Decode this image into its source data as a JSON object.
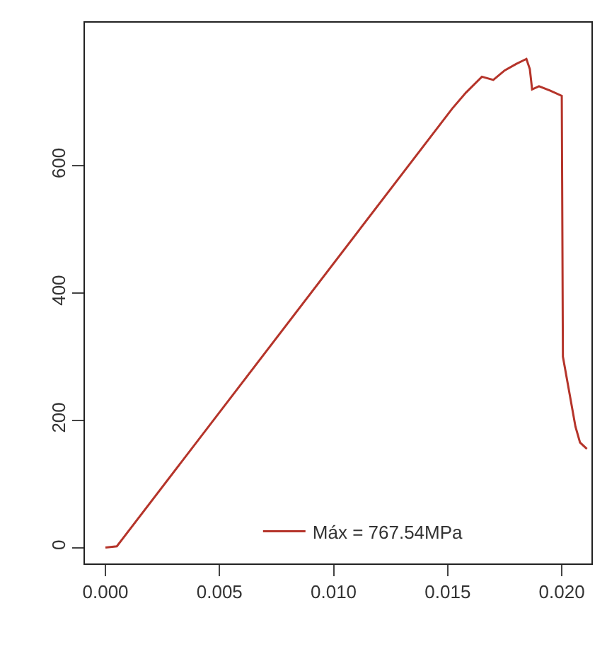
{
  "chart_data": {
    "type": "line",
    "x": [
      0,
      0.0005,
      0.0152,
      0.0158,
      0.0165,
      0.017,
      0.0175,
      0.018,
      0.01845,
      0.0186,
      0.0187,
      0.019,
      0.0195,
      0.02,
      0.02005,
      0.0203,
      0.0206,
      0.0208,
      0.0211
    ],
    "series": [
      {
        "name": "Máx = 767.54MPa",
        "color": "#b5342a",
        "values": [
          0,
          2,
          690,
          715,
          740,
          735,
          750,
          760,
          768,
          752,
          720,
          725,
          718,
          710,
          300,
          250,
          190,
          165,
          155
        ]
      }
    ],
    "xlim": [
      -0.0009,
      0.0213
    ],
    "xticks": [
      {
        "value": 0,
        "label": "0.000"
      },
      {
        "value": 0.005,
        "label": "0.005"
      },
      {
        "value": 0.01,
        "label": "0.010"
      },
      {
        "value": 0.015,
        "label": "0.015"
      },
      {
        "value": 0.02,
        "label": "0.020"
      }
    ],
    "ylim": [
      -25,
      825
    ],
    "yticks": [
      0,
      200,
      400,
      600
    ],
    "legend": "bottom",
    "line_style": "solid",
    "marker": "none"
  }
}
